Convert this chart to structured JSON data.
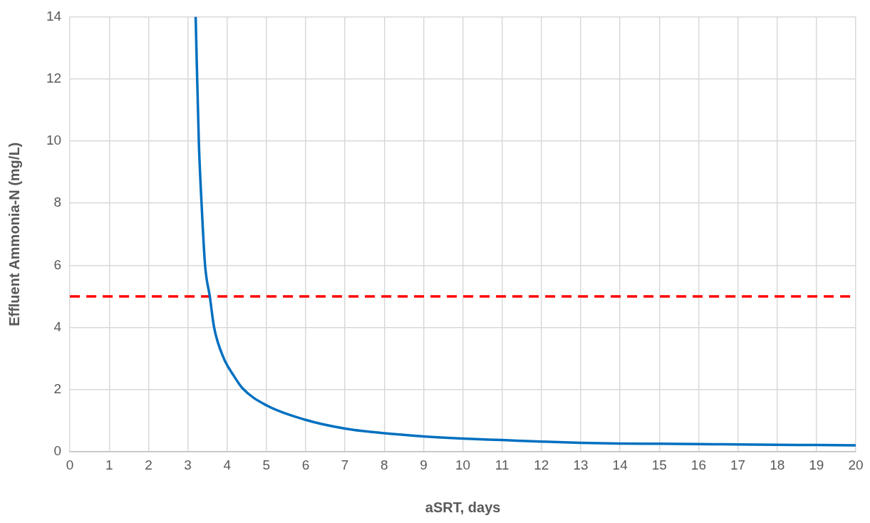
{
  "chart_data": {
    "type": "line",
    "xlabel": "aSRT, days",
    "ylabel": "Effluent Ammonia-N (mg/L)",
    "xlim": [
      0,
      20
    ],
    "xticks": [
      0,
      1,
      2,
      3,
      4,
      5,
      6,
      7,
      8,
      9,
      10,
      11,
      12,
      13,
      14,
      15,
      16,
      17,
      18,
      19,
      20
    ],
    "ylim": [
      0,
      14
    ],
    "yticks": [
      0,
      2,
      4,
      6,
      8,
      10,
      12,
      14
    ],
    "grid": true,
    "legend": false,
    "marker": "none",
    "line_style": "solid",
    "series": [
      {
        "color": "#0070c0",
        "x": [
          3.2,
          3.28,
          3.35,
          3.44,
          3.56,
          3.67,
          3.92,
          4.17,
          4.39,
          5,
          6,
          7,
          8,
          9,
          10,
          11,
          12,
          13,
          14,
          15,
          16,
          17,
          18,
          19,
          20
        ],
        "values": [
          14,
          10,
          8,
          6,
          5,
          4,
          3,
          2.45,
          2.05,
          1.5,
          1.03,
          0.75,
          0.6,
          0.5,
          0.43,
          0.38,
          0.33,
          0.29,
          0.27,
          0.26,
          0.25,
          0.24,
          0.23,
          0.22,
          0.21
        ]
      }
    ],
    "ref_lines": [
      {
        "axis": "y",
        "value": 5,
        "color": "#ff0000",
        "line_style": "dashed"
      }
    ]
  }
}
